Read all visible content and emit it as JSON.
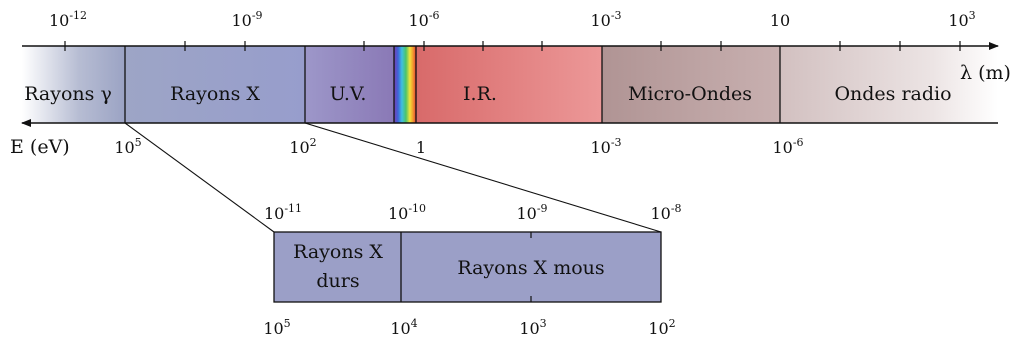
{
  "lambda_axis": {
    "label": "λ (m)",
    "ticks": [
      {
        "base": "10",
        "exp": "-12"
      },
      {
        "base": "10",
        "exp": "-9"
      },
      {
        "base": "10",
        "exp": "-6"
      },
      {
        "base": "10",
        "exp": "-3"
      },
      {
        "base": "10",
        "exp": ""
      },
      {
        "base": "10",
        "exp": "3"
      }
    ]
  },
  "energy_axis": {
    "label": "E (eV)",
    "ticks": [
      {
        "base": "10",
        "exp": "5"
      },
      {
        "base": "10",
        "exp": "2"
      },
      {
        "base": "1",
        "exp": ""
      },
      {
        "base": "10",
        "exp": "-3"
      },
      {
        "base": "10",
        "exp": "-6"
      }
    ]
  },
  "bands": [
    {
      "label": "Rayons γ",
      "color": "#9aa3c0"
    },
    {
      "label": "Rayons X",
      "color": "#9aa0c8"
    },
    {
      "label": "U.V.",
      "color": "#8f86bd"
    },
    {
      "label": "",
      "color": "rainbow"
    },
    {
      "label": "I.R.",
      "color": "#dc7575"
    },
    {
      "label": "Micro-Ondes",
      "color": "#b89a9a"
    },
    {
      "label": "Ondes radio",
      "color": "#d6c6c6"
    }
  ],
  "zoom": {
    "top_ticks": [
      {
        "base": "10",
        "exp": "-11"
      },
      {
        "base": "10",
        "exp": "-10"
      },
      {
        "base": "10",
        "exp": "-9"
      },
      {
        "base": "10",
        "exp": "-8"
      }
    ],
    "bottom_ticks": [
      {
        "base": "10",
        "exp": "5"
      },
      {
        "base": "10",
        "exp": "4"
      },
      {
        "base": "10",
        "exp": "3"
      },
      {
        "base": "10",
        "exp": "2"
      }
    ],
    "bands": [
      {
        "line1": "Rayons X",
        "line2": "durs",
        "color": "#9b9fc7"
      },
      {
        "line1": "Rayons X mous",
        "line2": "",
        "color": "#9b9fc7"
      }
    ]
  }
}
